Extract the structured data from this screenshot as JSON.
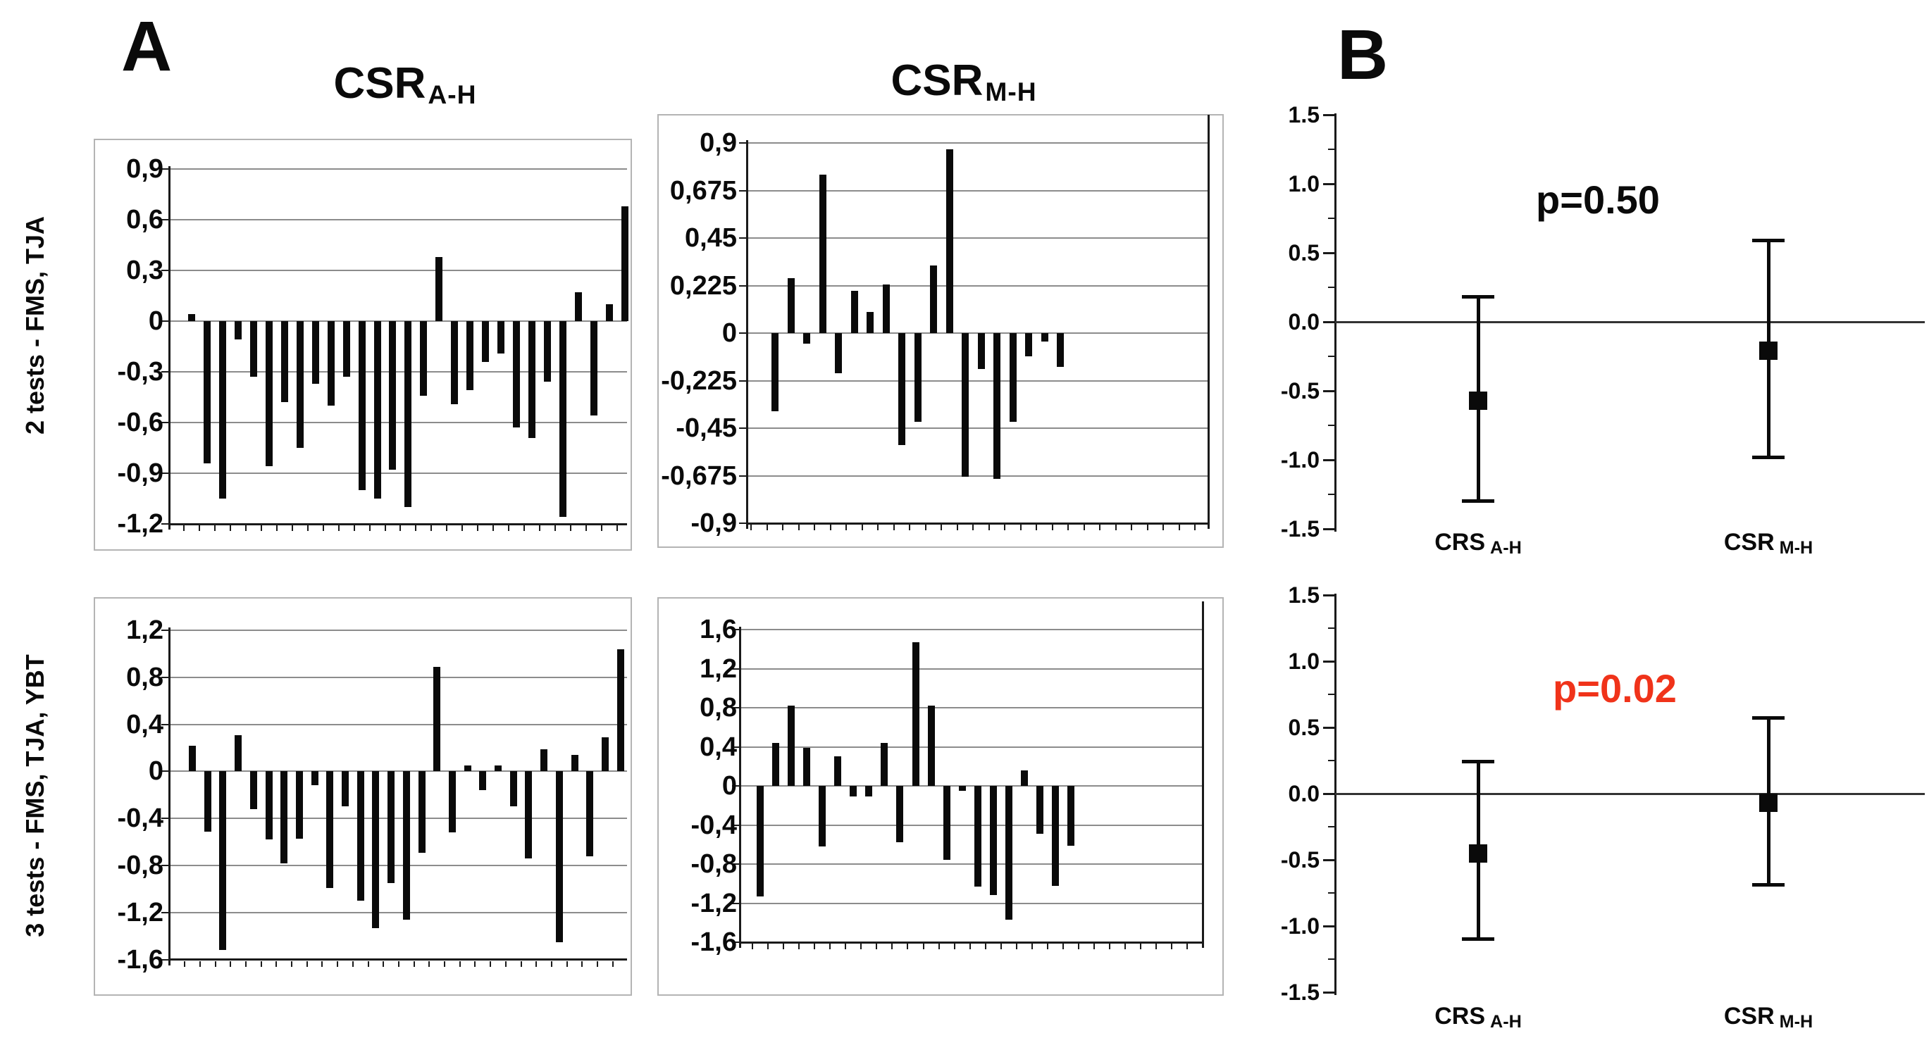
{
  "panel_a_label": "A",
  "panel_b_label": "B",
  "row_labels": [
    "2 tests - FMS, TJA",
    "3 tests - FMS, TJA, YBT"
  ],
  "colors": {
    "bar": "#0a0a0a",
    "p_significant": "#f0331a",
    "p_plain": "#0a0a0a",
    "gridline": "#8c8c8c"
  },
  "chart_data": [
    {
      "type": "bar",
      "id": "csr_ah_2tests",
      "title_main": "CSR",
      "title_sub": "A-H",
      "row": "2 tests - FMS, TJA",
      "ylim": [
        -1.2,
        0.9
      ],
      "ytick_step": 0.3,
      "ytick_labels": [
        "0,9",
        "0,6",
        "0,3",
        "0",
        "-0,3",
        "-0,6",
        "-0,9",
        "-1,2"
      ],
      "grid": true,
      "values": [
        0.04,
        -0.84,
        -1.05,
        -0.11,
        -0.33,
        -0.86,
        -0.48,
        -0.75,
        -0.37,
        -0.5,
        -0.33,
        -1.0,
        -1.05,
        -0.88,
        -1.1,
        -0.44,
        0.38,
        -0.49,
        -0.41,
        -0.24,
        -0.19,
        -0.63,
        -0.69,
        -0.36,
        -1.16,
        0.17,
        -0.56,
        0.1,
        0.68
      ]
    },
    {
      "type": "bar",
      "id": "csr_mh_2tests",
      "title_main": "CSR",
      "title_sub": "M-H",
      "row": "2 tests - FMS, TJA",
      "ylim": [
        -0.9,
        0.9
      ],
      "ytick_step": 0.225,
      "ytick_labels": [
        "0,9",
        "0,675",
        "0,45",
        "0,225",
        "0",
        "-0,225",
        "-0,45",
        "-0,675",
        "-0,9"
      ],
      "grid": true,
      "values": [
        -0.37,
        0.26,
        -0.05,
        0.75,
        -0.19,
        0.2,
        0.1,
        0.23,
        -0.53,
        -0.42,
        0.32,
        0.87,
        -0.68,
        -0.17,
        -0.69,
        -0.42,
        -0.11,
        -0.04,
        -0.16
      ]
    },
    {
      "type": "bar",
      "id": "csr_ah_3tests",
      "title_main": "CSR",
      "title_sub": "A-H",
      "row": "3 tests - FMS, TJA, YBT",
      "ylim": [
        -1.6,
        1.2
      ],
      "ytick_step": 0.4,
      "ytick_labels": [
        "1,2",
        "0,8",
        "0,4",
        "0",
        "-0,4",
        "-0,8",
        "-1,2",
        "-1,6"
      ],
      "grid": true,
      "values": [
        0.22,
        -0.51,
        -1.52,
        0.31,
        -0.32,
        -0.58,
        -0.78,
        -0.57,
        -0.12,
        -0.99,
        -0.3,
        -1.1,
        -1.33,
        -0.95,
        -1.26,
        -0.69,
        0.89,
        -0.52,
        0.05,
        -0.16,
        0.05,
        -0.3,
        -0.74,
        0.19,
        -1.45,
        0.14,
        -0.72,
        0.29,
        1.04
      ]
    },
    {
      "type": "bar",
      "id": "csr_mh_3tests",
      "title_main": "CSR",
      "title_sub": "M-H",
      "row": "3 tests - FMS, TJA, YBT",
      "ylim": [
        -1.6,
        1.6
      ],
      "ytick_step": 0.4,
      "ytick_labels": [
        "1,6",
        "1,2",
        "0,8",
        "0,4",
        "0",
        "-0,4",
        "-0,8",
        "-1,2",
        "-1,6"
      ],
      "grid": true,
      "values": [
        -1.13,
        0.44,
        0.82,
        0.39,
        -0.62,
        0.3,
        -0.11,
        -0.11,
        0.44,
        -0.58,
        1.47,
        0.82,
        -0.76,
        -0.05,
        -1.03,
        -1.12,
        -1.37,
        0.16,
        -0.49,
        -1.02,
        -0.61
      ]
    },
    {
      "type": "errorbar",
      "id": "summary_2tests",
      "p_label": "p=0.50",
      "p_color": "#0a0a0a",
      "ylim": [
        -1.5,
        1.5
      ],
      "ytick_step": 0.5,
      "ytick_labels": [
        "1.5",
        "1.0",
        "0.5",
        "0.0",
        "-0.5",
        "-1.0",
        "-1.5"
      ],
      "points": [
        {
          "label_main": "CRS",
          "label_sub": "A-H",
          "mean": -0.57,
          "ci_high": 0.18,
          "ci_low": -1.3
        },
        {
          "label_main": "CSR",
          "label_sub": "M-H",
          "mean": -0.21,
          "ci_high": 0.59,
          "ci_low": -0.98
        }
      ]
    },
    {
      "type": "errorbar",
      "id": "summary_3tests",
      "p_label": "p=0.02",
      "p_color": "#f0331a",
      "ylim": [
        -1.5,
        1.5
      ],
      "ytick_step": 0.5,
      "ytick_labels": [
        "1.5",
        "1.0",
        "0.5",
        "0.0",
        "-0.5",
        "-1.0",
        "-1.5"
      ],
      "points": [
        {
          "label_main": "CRS",
          "label_sub": "A-H",
          "mean": -0.45,
          "ci_high": 0.24,
          "ci_low": -1.1
        },
        {
          "label_main": "CSR",
          "label_sub": "M-H",
          "mean": -0.07,
          "ci_high": 0.57,
          "ci_low": -0.69
        }
      ]
    }
  ]
}
